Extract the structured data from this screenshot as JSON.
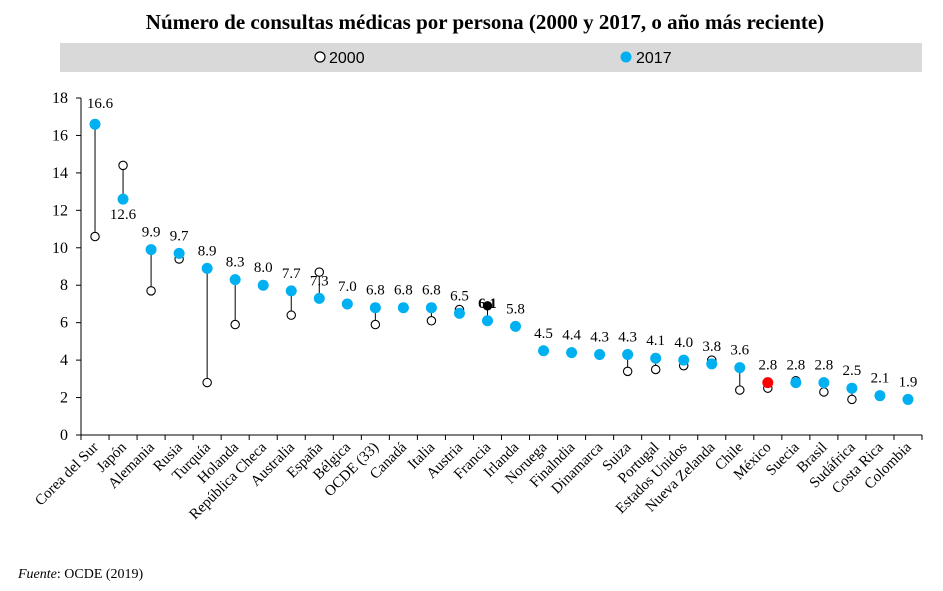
{
  "chart_data": {
    "type": "scatter",
    "title": "Número de consultas médicas por persona (2000 y 2017, o año más reciente)",
    "xlabel": "",
    "ylabel": "",
    "ylim": [
      0,
      18
    ],
    "yticks": [
      0,
      2,
      4,
      6,
      8,
      10,
      12,
      14,
      16,
      18
    ],
    "grid": false,
    "legend_position": "top-center",
    "categories": [
      "Corea del Sur",
      "Japón",
      "Alemania",
      "Rusia",
      "Turquía",
      "Holanda",
      "República Checa",
      "Australia",
      "España",
      "Bélgica",
      "OCDE (33)",
      "Canadá",
      "Italia",
      "Austria",
      "Francia",
      "Irlanda",
      "Noruega",
      "Finalndia",
      "Dinamarca",
      "Suiza",
      "Portugal",
      "Estados Unidos",
      "Nueva Zelanda",
      "Chile",
      "México",
      "Suecia",
      "Brasil",
      "Sudáfrica",
      "Costa Rica",
      "Colombia"
    ],
    "series": [
      {
        "name": "2000",
        "marker": "open-circle",
        "values": [
          10.6,
          14.4,
          7.7,
          9.4,
          2.8,
          5.9,
          null,
          6.4,
          8.7,
          null,
          5.9,
          6.8,
          6.1,
          6.7,
          6.9,
          null,
          null,
          null,
          null,
          3.4,
          3.5,
          3.7,
          4.0,
          2.4,
          2.5,
          2.9,
          2.3,
          1.9,
          null,
          null
        ]
      },
      {
        "name": "2017",
        "marker": "filled-circle",
        "values": [
          16.6,
          12.6,
          9.9,
          9.7,
          8.9,
          8.3,
          8.0,
          7.7,
          7.3,
          7.0,
          6.8,
          6.8,
          6.8,
          6.5,
          6.1,
          5.8,
          4.5,
          4.4,
          4.3,
          4.3,
          4.1,
          4.0,
          3.8,
          3.6,
          2.8,
          2.8,
          2.8,
          2.5,
          2.1,
          1.9
        ]
      }
    ],
    "data_labels": [
      "16.6",
      "12.6",
      "9.9",
      "9.7",
      "8.9",
      "8.3",
      "8.0",
      "7.7",
      "7.3",
      "7.0",
      "6.8",
      "6.8",
      "6.8",
      "6.5",
      "6.1",
      "5.8",
      "4.5",
      "4.4",
      "4.3",
      "4.3",
      "4.1",
      "4.0",
      "3.8",
      "3.6",
      "2.8",
      "2.8",
      "2.8",
      "2.5",
      "2.1",
      "1.9"
    ],
    "colors": {
      "series_2017": "#00b0f0",
      "mexico_2017": "#ff0000",
      "francia_2000": "#000000",
      "open_marker_stroke": "#000000",
      "legend_band": "#d9d9d9"
    },
    "emphasis": {
      "mexico_index": 24,
      "francia_index": 14
    }
  },
  "source": {
    "label": "Fuente",
    "separator": ":",
    "text": "OCDE (2019)"
  }
}
